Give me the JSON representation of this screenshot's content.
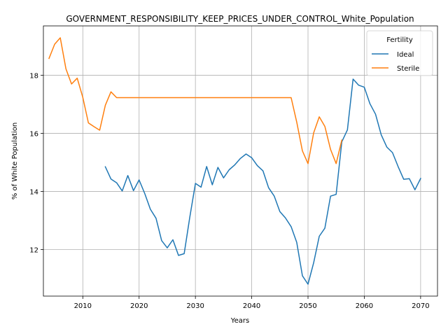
{
  "chart_data": {
    "type": "line",
    "title": "GOVERNMENT_RESPONSIBILITY_KEEP_PRICES_UNDER_CONTROL_White_Population",
    "xlabel": "Years",
    "ylabel": "% of White Population",
    "xlim": [
      2003,
      2073
    ],
    "ylim": [
      10.4,
      19.7
    ],
    "xticks": [
      2010,
      2020,
      2030,
      2040,
      2050,
      2060,
      2070
    ],
    "yticks": [
      12,
      14,
      16,
      18
    ],
    "grid": true,
    "legend": {
      "title": "Fertility",
      "position": "top-right"
    },
    "series": [
      {
        "name": "Ideal",
        "color": "#1f77b4",
        "x": [
          2014,
          2015,
          2016,
          2017,
          2018,
          2019,
          2020,
          2021,
          2022,
          2023,
          2024,
          2025,
          2026,
          2027,
          2028,
          2029,
          2030,
          2031,
          2032,
          2033,
          2034,
          2035,
          2036,
          2037,
          2038,
          2039,
          2040,
          2041,
          2042,
          2043,
          2044,
          2045,
          2046,
          2047,
          2048,
          2049,
          2050,
          2051,
          2052,
          2053,
          2054,
          2055,
          2056,
          2057,
          2058,
          2059,
          2060,
          2061,
          2062,
          2063,
          2064,
          2065,
          2066,
          2067,
          2068,
          2069,
          2070
        ],
        "y": [
          14.85,
          14.43,
          14.3,
          14.02,
          14.55,
          14.03,
          14.4,
          13.93,
          13.39,
          13.08,
          12.31,
          12.06,
          12.34,
          11.8,
          11.86,
          13.11,
          14.28,
          14.15,
          14.86,
          14.23,
          14.83,
          14.47,
          14.75,
          14.92,
          15.14,
          15.29,
          15.16,
          14.89,
          14.71,
          14.13,
          13.84,
          13.31,
          13.09,
          12.79,
          12.25,
          11.1,
          10.81,
          11.55,
          12.46,
          12.74,
          13.84,
          13.9,
          15.71,
          16.12,
          17.87,
          17.66,
          17.59,
          17.02,
          16.66,
          15.95,
          15.53,
          15.34,
          14.86,
          14.42,
          14.44,
          14.06,
          14.45
        ]
      },
      {
        "name": "Sterile",
        "color": "#ff7f0e",
        "x": [
          2004,
          2005,
          2006,
          2007,
          2008,
          2009,
          2010,
          2011,
          2012,
          2013,
          2014,
          2015,
          2016,
          2017,
          2018,
          2019,
          2020,
          2021,
          2022,
          2023,
          2024,
          2025,
          2026,
          2027,
          2028,
          2029,
          2030,
          2031,
          2032,
          2033,
          2034,
          2035,
          2036,
          2037,
          2038,
          2039,
          2040,
          2041,
          2042,
          2043,
          2044,
          2045,
          2046,
          2047,
          2048,
          2049,
          2050,
          2051,
          2052,
          2053,
          2054,
          2055,
          2056
        ],
        "y": [
          18.58,
          19.07,
          19.29,
          18.22,
          17.7,
          17.9,
          17.24,
          16.36,
          16.23,
          16.11,
          16.97,
          17.43,
          17.23,
          17.23,
          17.23,
          17.23,
          17.23,
          17.23,
          17.23,
          17.23,
          17.23,
          17.23,
          17.23,
          17.23,
          17.23,
          17.23,
          17.23,
          17.23,
          17.23,
          17.23,
          17.23,
          17.23,
          17.23,
          17.23,
          17.23,
          17.23,
          17.23,
          17.23,
          17.23,
          17.23,
          17.23,
          17.23,
          17.23,
          17.23,
          16.39,
          15.4,
          14.96,
          16.02,
          16.57,
          16.24,
          15.45,
          14.96,
          15.77
        ]
      }
    ]
  }
}
